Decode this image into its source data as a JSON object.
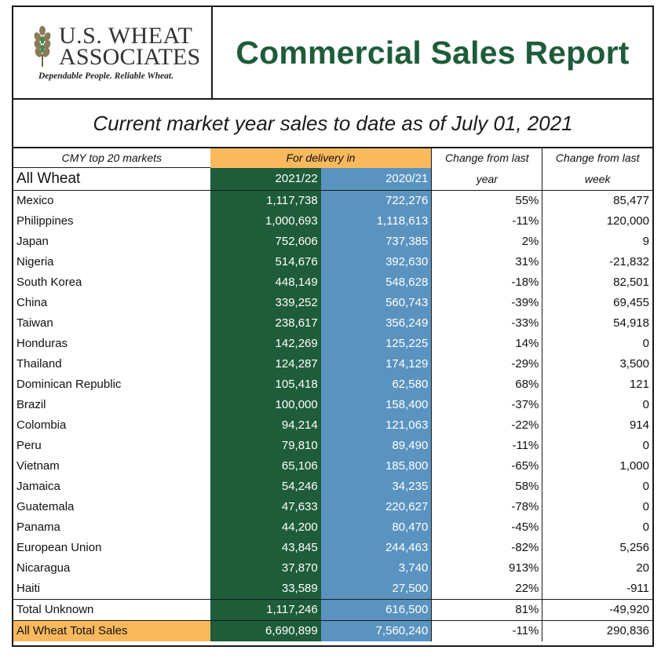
{
  "header": {
    "logo_line1": "U.S. WHEAT",
    "logo_line2": "ASSOCIATES",
    "logo_tagline": "Dependable People. Reliable Wheat.",
    "title": "Commercial Sales Report"
  },
  "subtitle": "Current market year sales to date as of July 01, 2021",
  "table": {
    "cmy_label": "CMY top 20 markets",
    "delivery_label": "For delivery in",
    "change_year_l1": "Change from last",
    "change_year_l2": "year",
    "change_week_l1": "Change from last",
    "change_week_l2": "week",
    "all_wheat_label": "All Wheat",
    "col_2122": "2021/22",
    "col_2021": "2020/21",
    "rows": [
      {
        "market": "Mexico",
        "y2122": "1,117,738",
        "y2021": "722,276",
        "chg_year": "55%",
        "chg_week": "85,477"
      },
      {
        "market": "Philippines",
        "y2122": "1,000,693",
        "y2021": "1,118,613",
        "chg_year": "-11%",
        "chg_week": "120,000"
      },
      {
        "market": "Japan",
        "y2122": "752,606",
        "y2021": "737,385",
        "chg_year": "2%",
        "chg_week": "9"
      },
      {
        "market": "Nigeria",
        "y2122": "514,676",
        "y2021": "392,630",
        "chg_year": "31%",
        "chg_week": "-21,832"
      },
      {
        "market": "South Korea",
        "y2122": "448,149",
        "y2021": "548,628",
        "chg_year": "-18%",
        "chg_week": "82,501"
      },
      {
        "market": "China",
        "y2122": "339,252",
        "y2021": "560,743",
        "chg_year": "-39%",
        "chg_week": "69,455"
      },
      {
        "market": "Taiwan",
        "y2122": "238,617",
        "y2021": "356,249",
        "chg_year": "-33%",
        "chg_week": "54,918"
      },
      {
        "market": "Honduras",
        "y2122": "142,269",
        "y2021": "125,225",
        "chg_year": "14%",
        "chg_week": "0"
      },
      {
        "market": "Thailand",
        "y2122": "124,287",
        "y2021": "174,129",
        "chg_year": "-29%",
        "chg_week": "3,500"
      },
      {
        "market": "Dominican Republic",
        "y2122": "105,418",
        "y2021": "62,580",
        "chg_year": "68%",
        "chg_week": "121"
      },
      {
        "market": "Brazil",
        "y2122": "100,000",
        "y2021": "158,400",
        "chg_year": "-37%",
        "chg_week": "0"
      },
      {
        "market": "Colombia",
        "y2122": "94,214",
        "y2021": "121,063",
        "chg_year": "-22%",
        "chg_week": "914"
      },
      {
        "market": "Peru",
        "y2122": "79,810",
        "y2021": "89,490",
        "chg_year": "-11%",
        "chg_week": "0"
      },
      {
        "market": "Vietnam",
        "y2122": "65,106",
        "y2021": "185,800",
        "chg_year": "-65%",
        "chg_week": "1,000"
      },
      {
        "market": "Jamaica",
        "y2122": "54,246",
        "y2021": "34,235",
        "chg_year": "58%",
        "chg_week": "0"
      },
      {
        "market": "Guatemala",
        "y2122": "47,633",
        "y2021": "220,627",
        "chg_year": "-78%",
        "chg_week": "0"
      },
      {
        "market": "Panama",
        "y2122": "44,200",
        "y2021": "80,470",
        "chg_year": "-45%",
        "chg_week": "0"
      },
      {
        "market": "European Union",
        "y2122": "43,845",
        "y2021": "244,463",
        "chg_year": "-82%",
        "chg_week": "5,256"
      },
      {
        "market": "Nicaragua",
        "y2122": "37,870",
        "y2021": "3,740",
        "chg_year": "913%",
        "chg_week": "20"
      },
      {
        "market": "Haiti",
        "y2122": "33,589",
        "y2021": "27,500",
        "chg_year": "22%",
        "chg_week": "-911"
      }
    ],
    "unknown": {
      "market": "Total Unknown",
      "y2122": "1,117,246",
      "y2021": "616,500",
      "chg_year": "81%",
      "chg_week": "-49,920"
    },
    "total": {
      "market": "All Wheat Total Sales",
      "y2122": "6,690,899",
      "y2021": "7,560,240",
      "chg_year": "-11%",
      "chg_week": "290,836"
    }
  },
  "colors": {
    "title_green": "#1e5c3a",
    "col_green": "#1e5c3a",
    "col_blue": "#5a93bf",
    "highlight_orange": "#f9b95c"
  }
}
